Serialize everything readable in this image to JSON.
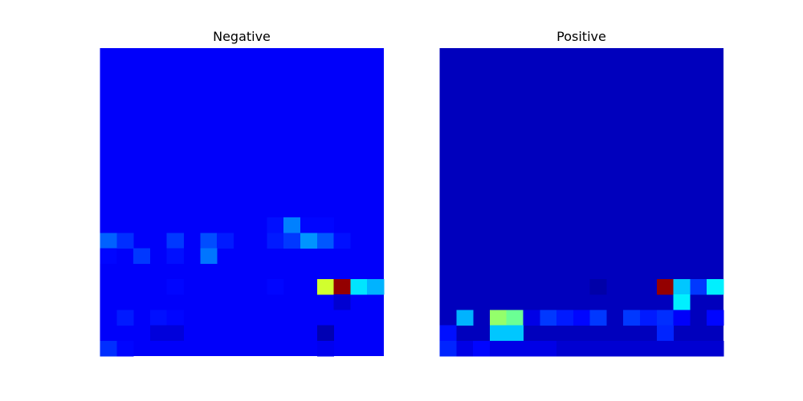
{
  "chart_data": [
    {
      "type": "heatmap",
      "title": "Negative",
      "colormap": "jet",
      "rows": 19,
      "cols": 17,
      "grid": false,
      "axes_visible": false,
      "base_value": 0.12,
      "cells": [
        {
          "r": 11,
          "c": 10,
          "v": 0.14
        },
        {
          "r": 11,
          "c": 11,
          "v": 0.25
        },
        {
          "r": 11,
          "c": 12,
          "v": 0.13
        },
        {
          "r": 11,
          "c": 13,
          "v": 0.13
        },
        {
          "r": 12,
          "c": 0,
          "v": 0.22
        },
        {
          "r": 12,
          "c": 1,
          "v": 0.17
        },
        {
          "r": 12,
          "c": 4,
          "v": 0.18
        },
        {
          "r": 12,
          "c": 6,
          "v": 0.2
        },
        {
          "r": 12,
          "c": 7,
          "v": 0.15
        },
        {
          "r": 12,
          "c": 10,
          "v": 0.15
        },
        {
          "r": 12,
          "c": 11,
          "v": 0.18
        },
        {
          "r": 12,
          "c": 12,
          "v": 0.27
        },
        {
          "r": 12,
          "c": 13,
          "v": 0.21
        },
        {
          "r": 12,
          "c": 14,
          "v": 0.14
        },
        {
          "r": 13,
          "c": 0,
          "v": 0.13
        },
        {
          "r": 13,
          "c": 2,
          "v": 0.18
        },
        {
          "r": 13,
          "c": 4,
          "v": 0.14
        },
        {
          "r": 13,
          "c": 6,
          "v": 0.24
        },
        {
          "r": 15,
          "c": 4,
          "v": 0.13
        },
        {
          "r": 15,
          "c": 10,
          "v": 0.13
        },
        {
          "r": 15,
          "c": 13,
          "v": 0.58
        },
        {
          "r": 15,
          "c": 14,
          "v": 0.98
        },
        {
          "r": 15,
          "c": 15,
          "v": 0.35
        },
        {
          "r": 15,
          "c": 16,
          "v": 0.3
        },
        {
          "r": 16,
          "c": 14,
          "v": 0.08
        },
        {
          "r": 17,
          "c": 1,
          "v": 0.15
        },
        {
          "r": 17,
          "c": 3,
          "v": 0.14
        },
        {
          "r": 17,
          "c": 4,
          "v": 0.13
        },
        {
          "r": 18,
          "c": 3,
          "v": 0.09
        },
        {
          "r": 18,
          "c": 4,
          "v": 0.09
        },
        {
          "r": 18,
          "c": 13,
          "v": 0.05
        },
        {
          "r": 19,
          "c": 0,
          "v": 0.17
        },
        {
          "r": 19,
          "c": 1,
          "v": 0.13
        },
        {
          "r": 19,
          "c": 13,
          "v": 0.11
        }
      ]
    },
    {
      "type": "heatmap",
      "title": "Positive",
      "colormap": "jet",
      "rows": 19,
      "cols": 17,
      "grid": false,
      "axes_visible": false,
      "base_value": 0.06,
      "cells": [
        {
          "r": 15,
          "c": 9,
          "v": 0.04
        },
        {
          "r": 15,
          "c": 13,
          "v": 0.98
        },
        {
          "r": 15,
          "c": 14,
          "v": 0.32
        },
        {
          "r": 15,
          "c": 15,
          "v": 0.18
        },
        {
          "r": 15,
          "c": 16,
          "v": 0.36
        },
        {
          "r": 16,
          "c": 14,
          "v": 0.36
        },
        {
          "r": 17,
          "c": 1,
          "v": 0.3
        },
        {
          "r": 17,
          "c": 3,
          "v": 0.52
        },
        {
          "r": 17,
          "c": 4,
          "v": 0.48
        },
        {
          "r": 17,
          "c": 5,
          "v": 0.1
        },
        {
          "r": 17,
          "c": 6,
          "v": 0.18
        },
        {
          "r": 17,
          "c": 7,
          "v": 0.15
        },
        {
          "r": 17,
          "c": 8,
          "v": 0.13
        },
        {
          "r": 17,
          "c": 9,
          "v": 0.18
        },
        {
          "r": 17,
          "c": 11,
          "v": 0.18
        },
        {
          "r": 17,
          "c": 12,
          "v": 0.15
        },
        {
          "r": 17,
          "c": 13,
          "v": 0.17
        },
        {
          "r": 17,
          "c": 14,
          "v": 0.12
        },
        {
          "r": 17,
          "c": 16,
          "v": 0.13
        },
        {
          "r": 18,
          "c": 0,
          "v": 0.14
        },
        {
          "r": 18,
          "c": 3,
          "v": 0.32
        },
        {
          "r": 18,
          "c": 4,
          "v": 0.32
        },
        {
          "r": 18,
          "c": 13,
          "v": 0.16
        },
        {
          "r": 19,
          "c": 0,
          "v": 0.16
        },
        {
          "r": 19,
          "c": 1,
          "v": 0.1
        },
        {
          "r": 19,
          "c": 2,
          "v": 0.13
        },
        {
          "r": 19,
          "c": 3,
          "v": 0.1
        },
        {
          "r": 19,
          "c": 4,
          "v": 0.1
        },
        {
          "r": 19,
          "c": 5,
          "v": 0.1
        },
        {
          "r": 19,
          "c": 6,
          "v": 0.1
        },
        {
          "r": 19,
          "c": 7,
          "v": 0.08
        },
        {
          "r": 19,
          "c": 8,
          "v": 0.08
        },
        {
          "r": 19,
          "c": 9,
          "v": 0.08
        },
        {
          "r": 19,
          "c": 10,
          "v": 0.08
        },
        {
          "r": 19,
          "c": 11,
          "v": 0.08
        },
        {
          "r": 19,
          "c": 12,
          "v": 0.08
        },
        {
          "r": 19,
          "c": 13,
          "v": 0.08
        },
        {
          "r": 19,
          "c": 14,
          "v": 0.08
        },
        {
          "r": 19,
          "c": 15,
          "v": 0.08
        },
        {
          "r": 19,
          "c": 16,
          "v": 0.08
        }
      ]
    }
  ]
}
